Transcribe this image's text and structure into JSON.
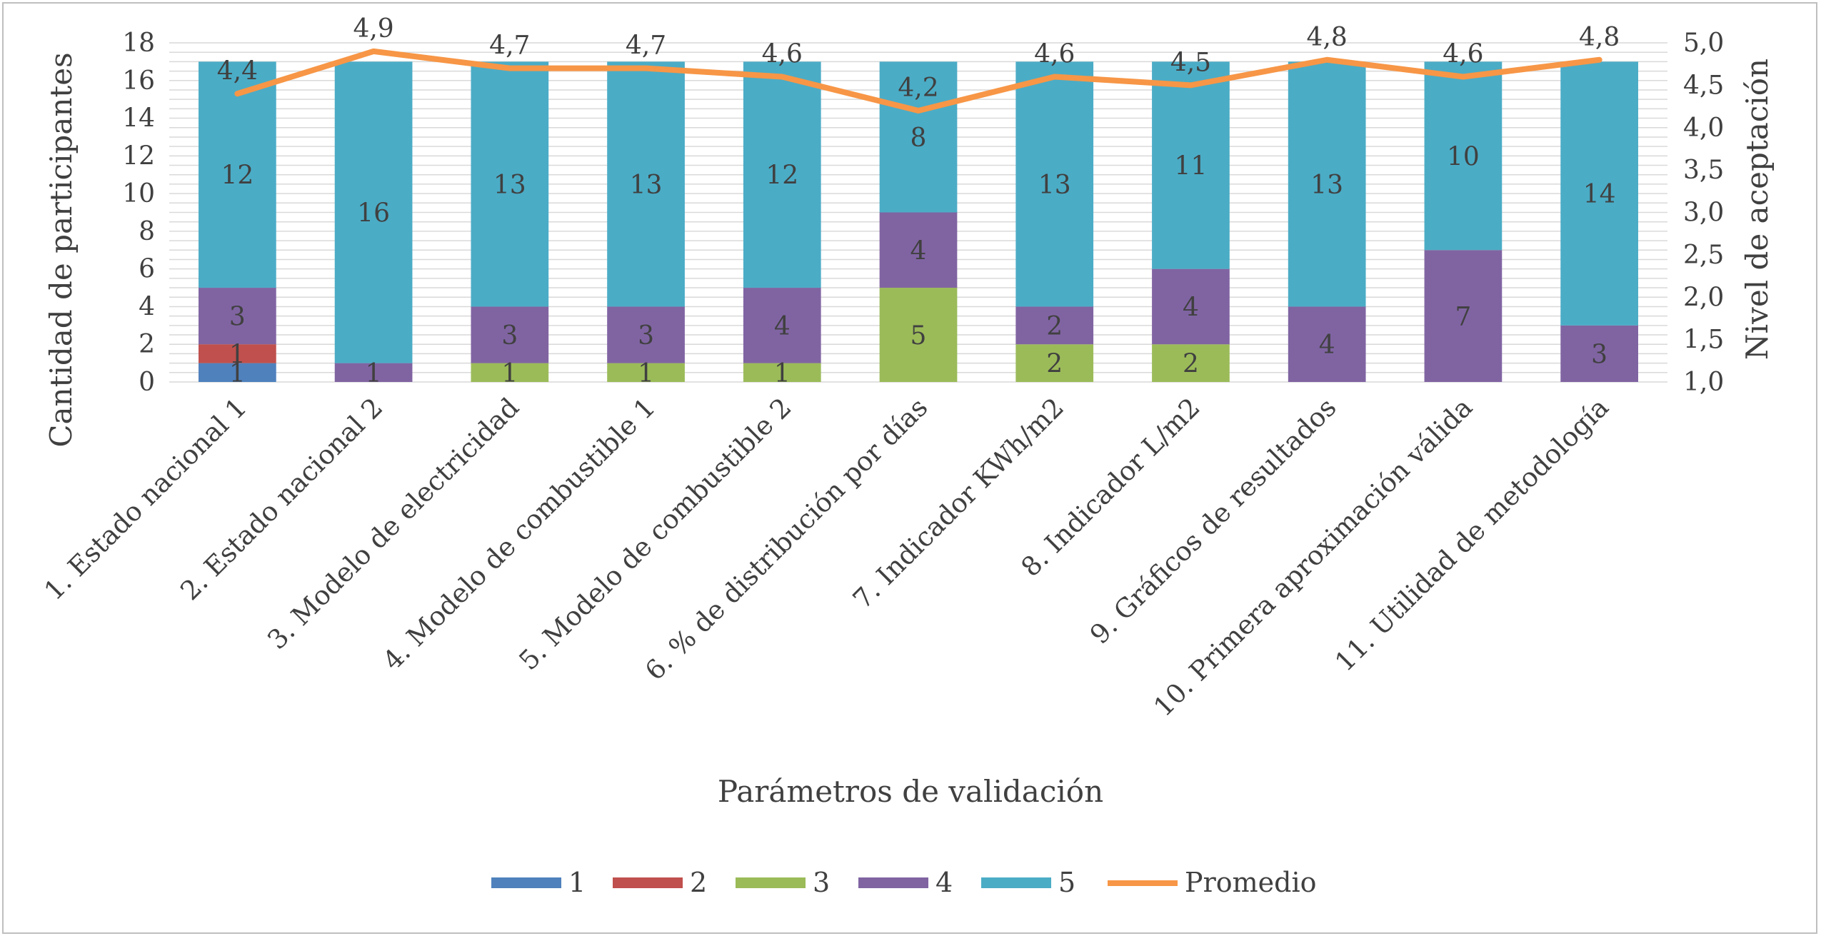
{
  "chart_data": {
    "type": "bar",
    "stacked": true,
    "categories": [
      "1. Estado nacional 1",
      "2. Estado nacional 2",
      "3. Modelo de electricidad",
      "4. Modelo de combustible 1",
      "5. Modelo de combustible 2",
      "6. % de distribución por días",
      "7. Indicador KWh/m2",
      "8. Indicador L/m2",
      "9. Gráficos de resultados",
      "10. Primera aproximación válida",
      "11. Utilidad de metodología"
    ],
    "series": [
      {
        "name": "1",
        "color": "#4f81bd",
        "values": [
          1,
          0,
          0,
          0,
          0,
          0,
          0,
          0,
          0,
          0,
          0
        ]
      },
      {
        "name": "2",
        "color": "#c0504d",
        "values": [
          1,
          0,
          0,
          0,
          0,
          0,
          0,
          0,
          0,
          0,
          0
        ]
      },
      {
        "name": "3",
        "color": "#9bbb59",
        "values": [
          0,
          0,
          1,
          1,
          1,
          5,
          2,
          2,
          0,
          0,
          0
        ]
      },
      {
        "name": "4",
        "color": "#8064a2",
        "values": [
          3,
          1,
          3,
          3,
          4,
          4,
          2,
          4,
          4,
          7,
          3
        ]
      },
      {
        "name": "5",
        "color": "#4bacc6",
        "values": [
          12,
          16,
          13,
          13,
          12,
          8,
          13,
          11,
          13,
          10,
          14
        ]
      }
    ],
    "line_series": {
      "name": "Promedio",
      "color": "#f79646",
      "axis": "secondary",
      "values": [
        4.4,
        4.9,
        4.7,
        4.7,
        4.6,
        4.2,
        4.6,
        4.5,
        4.8,
        4.6,
        4.8
      ],
      "labels": [
        "4,4",
        "4,9",
        "4,7",
        "4,7",
        "4,6",
        "4,2",
        "4,6",
        "4,5",
        "4,8",
        "4,6",
        "4,8"
      ]
    },
    "xlabel": "Parámetros de validación",
    "ylabel": "Cantidad de participantes",
    "y2label": "Nivel de aceptación",
    "ylim": [
      0,
      18
    ],
    "y_ticks": [
      0,
      2,
      4,
      6,
      8,
      10,
      12,
      14,
      16,
      18
    ],
    "y_tick_labels": [
      "0",
      "2",
      "4",
      "6",
      "8",
      "10",
      "12",
      "14",
      "16",
      "18"
    ],
    "y2lim": [
      1.0,
      5.0
    ],
    "y2_ticks": [
      1.0,
      1.5,
      2.0,
      2.5,
      3.0,
      3.5,
      4.0,
      4.5,
      5.0
    ],
    "y2_tick_labels": [
      "1,0",
      "1,5",
      "2,0",
      "2,5",
      "3,0",
      "3,5",
      "4,0",
      "4,5",
      "5,0"
    ],
    "grid": true,
    "legend_position": "bottom"
  }
}
